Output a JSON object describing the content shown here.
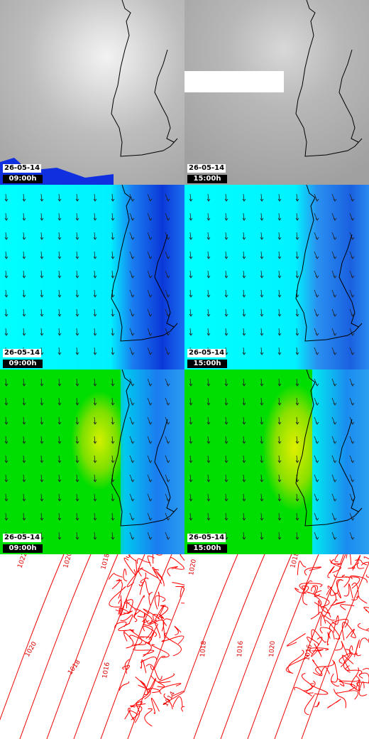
{
  "panels": [
    {
      "date": "26-05-14",
      "time": "09:00h"
    },
    {
      "date": "26-05-14",
      "time": "15:00h"
    },
    {
      "date": "26-05-14",
      "time": "09:00h"
    },
    {
      "date": "26-05-14",
      "time": "15:00h"
    },
    {
      "date": "26-05-14",
      "time": "09:00h"
    },
    {
      "date": "26-05-14",
      "time": "15:00h"
    },
    {
      "contour_labels": [
        "1022",
        "1020",
        "1018",
        "1016",
        "1020",
        "1018",
        "1014"
      ]
    },
    {
      "contour_labels": [
        "1020",
        "1018",
        "1016",
        "1020",
        "1018",
        "1016"
      ]
    }
  ]
}
